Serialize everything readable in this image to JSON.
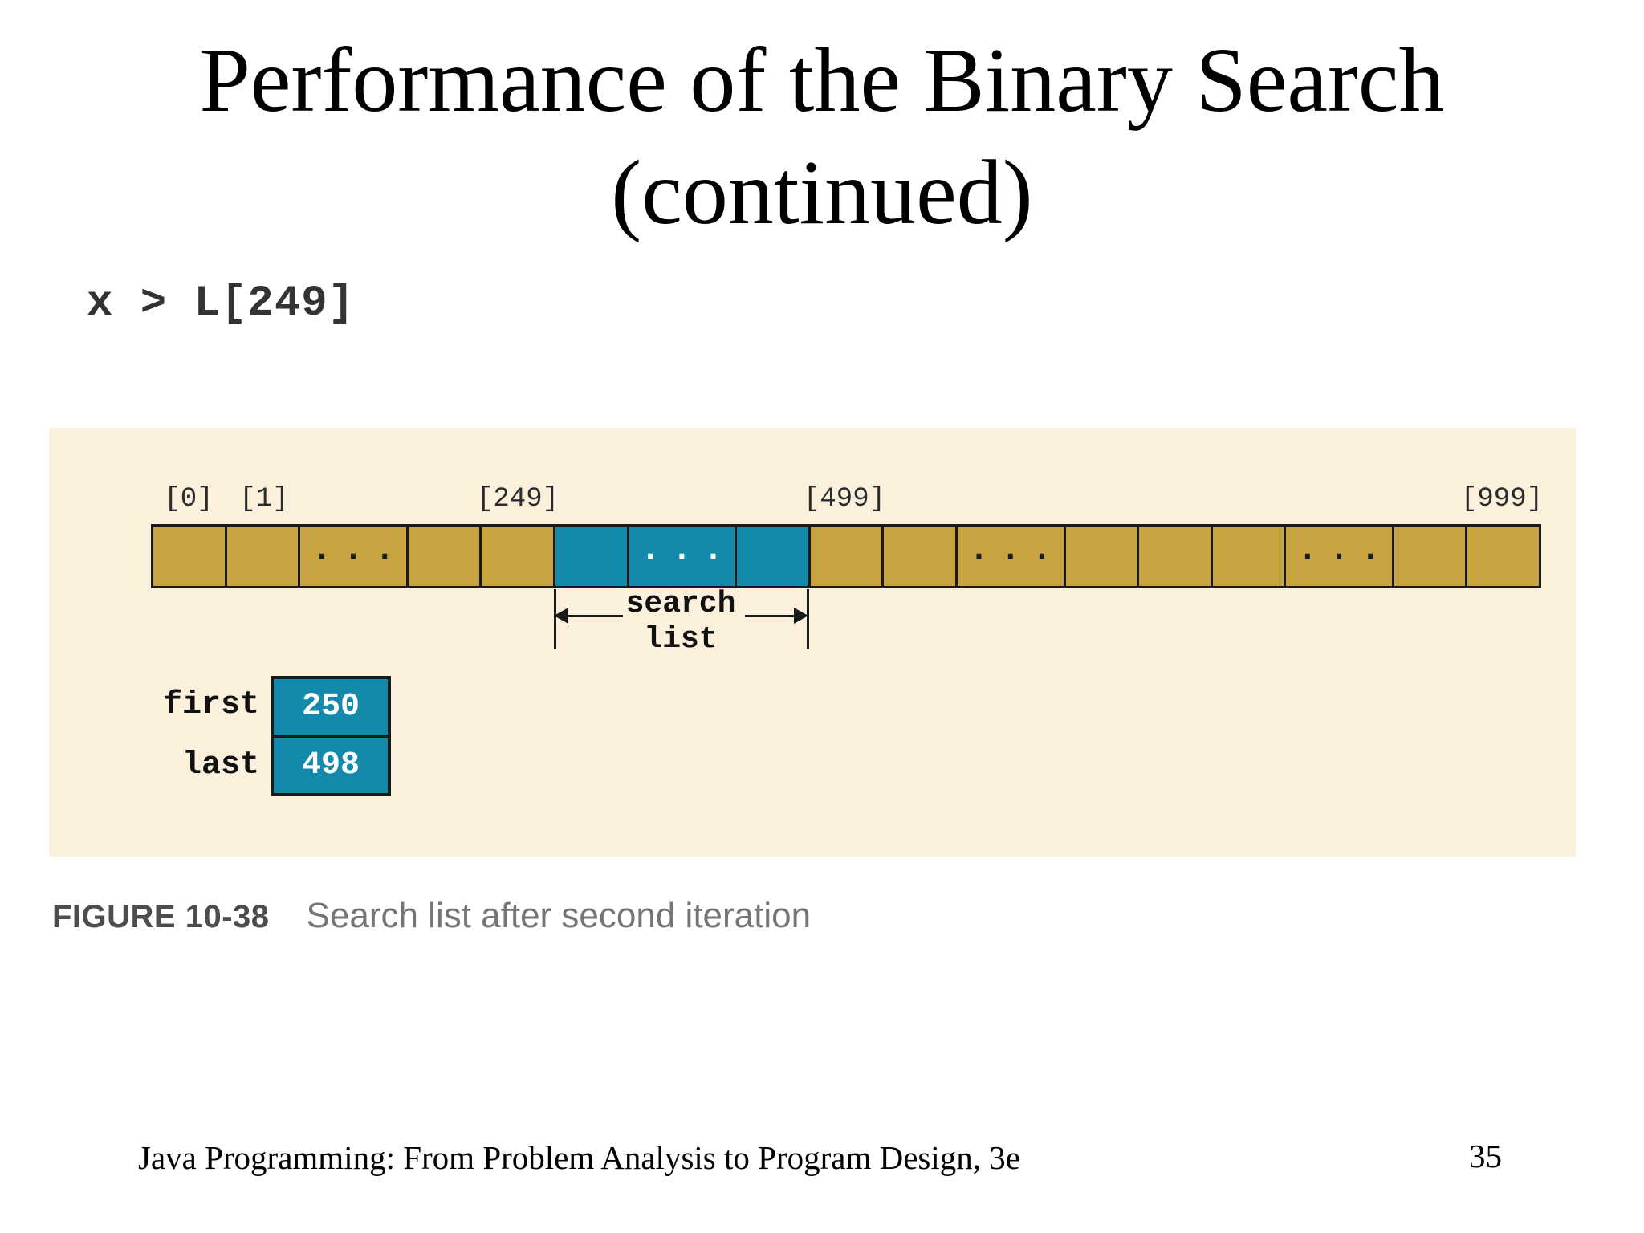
{
  "slide": {
    "title_line1": "Performance of the Binary Search",
    "title_line2": "(continued)",
    "expression": "x > L[249]",
    "footer_text": "Java Programming: From Problem Analysis to Program Design, 3e",
    "page_number": "35"
  },
  "figure": {
    "index_labels": [
      "[0]",
      "[1]",
      "[249]",
      "[499]",
      "[999]"
    ],
    "ellipsis": "...",
    "array_cells": [
      {
        "color": "gold",
        "dots": false
      },
      {
        "color": "gold",
        "dots": false
      },
      {
        "color": "gold",
        "dots": true
      },
      {
        "color": "gold",
        "dots": false
      },
      {
        "color": "gold",
        "dots": false
      },
      {
        "color": "teal",
        "dots": false
      },
      {
        "color": "teal",
        "dots": true
      },
      {
        "color": "teal",
        "dots": false
      },
      {
        "color": "gold",
        "dots": false
      },
      {
        "color": "gold",
        "dots": false
      },
      {
        "color": "gold",
        "dots": true
      },
      {
        "color": "gold",
        "dots": false
      },
      {
        "color": "gold",
        "dots": false
      },
      {
        "color": "gold",
        "dots": false
      },
      {
        "color": "gold",
        "dots": true
      },
      {
        "color": "gold",
        "dots": false
      },
      {
        "color": "gold",
        "dots": false
      }
    ],
    "search_label": {
      "line1": "search",
      "line2": "list"
    },
    "variables": [
      {
        "name": "first",
        "value": "250"
      },
      {
        "name": "last",
        "value": "498"
      }
    ],
    "caption_label": "FIGURE 10-38",
    "caption_text": "Search list after second iteration",
    "colors": {
      "panel_bg": "#FAF0DC",
      "cell_gold": "#C8A440",
      "cell_teal": "#1389AC",
      "line": "#1A1A1A"
    }
  }
}
